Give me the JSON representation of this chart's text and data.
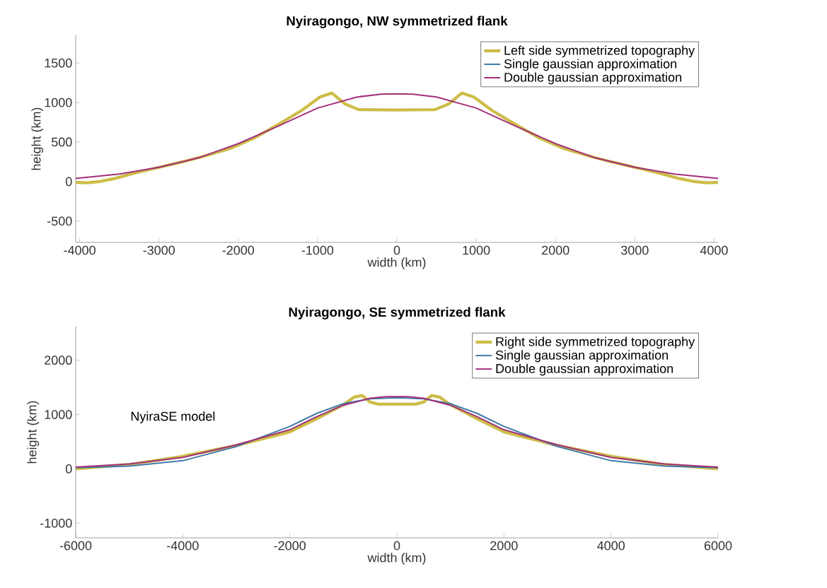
{
  "chart_data": [
    {
      "type": "line",
      "title": "Nyiragongo, NW symmetrized flank",
      "xlabel": "width (km)",
      "ylabel": "height (km)",
      "xlim": [
        -4050,
        4050
      ],
      "ylim": [
        -770,
        1850
      ],
      "xticks": [
        -4000,
        -3000,
        -2000,
        -1000,
        0,
        1000,
        2000,
        3000,
        4000
      ],
      "yticks": [
        -500,
        0,
        500,
        1000,
        1500
      ],
      "legend": "top right",
      "grid": false,
      "series": [
        {
          "name": "Left side symmetrized topography",
          "color": "#cdbd48",
          "x": [
            -4050,
            -3900,
            -3750,
            -3550,
            -3300,
            -3000,
            -2700,
            -2400,
            -2100,
            -1800,
            -1500,
            -1200,
            -970,
            -820,
            -650,
            -480,
            0,
            480,
            650,
            820,
            970,
            1200,
            1500,
            1800,
            2100,
            2400,
            2700,
            3000,
            3300,
            3550,
            3750,
            3900,
            4050
          ],
          "values": [
            -10,
            -15,
            0,
            40,
            110,
            180,
            250,
            330,
            420,
            550,
            720,
            900,
            1070,
            1120,
            980,
            910,
            905,
            910,
            980,
            1120,
            1070,
            900,
            720,
            550,
            420,
            330,
            250,
            180,
            110,
            40,
            0,
            -15,
            -10
          ]
        },
        {
          "name": "Single gaussian approximation",
          "color": "#3f7aa8"
        },
        {
          "name": "Double gaussian approximation",
          "color": "#a3307a",
          "x": [
            -4050,
            -3500,
            -3000,
            -2500,
            -2000,
            -1500,
            -1000,
            -500,
            -200,
            0,
            200,
            500,
            1000,
            1500,
            2000,
            2500,
            3000,
            3500,
            4050
          ],
          "values": [
            40,
            95,
            180,
            300,
            480,
            700,
            930,
            1070,
            1105,
            1110,
            1105,
            1070,
            930,
            700,
            480,
            300,
            180,
            95,
            40
          ]
        }
      ]
    },
    {
      "type": "line",
      "title": "Nyiragongo, SE symmetrized flank",
      "xlabel": "width (km)",
      "ylabel": "height (km)",
      "xlim": [
        -6000,
        6000
      ],
      "ylim": [
        -1270,
        2620
      ],
      "xticks": [
        -6000,
        -4000,
        -2000,
        0,
        2000,
        4000,
        6000
      ],
      "yticks": [
        -1000,
        0,
        1000,
        2000
      ],
      "legend": "top right",
      "grid": false,
      "annotations": [
        "NyiraSE model"
      ],
      "series": [
        {
          "name": "Right side symmetrized topography",
          "color": "#cdbd48",
          "x": [
            -6000,
            -5000,
            -4000,
            -3000,
            -2000,
            -1500,
            -1000,
            -800,
            -650,
            -500,
            -350,
            0,
            350,
            500,
            650,
            800,
            1000,
            1500,
            2000,
            3000,
            4000,
            5000,
            6000
          ],
          "values": [
            0,
            80,
            230,
            430,
            680,
            920,
            1180,
            1320,
            1350,
            1230,
            1190,
            1190,
            1190,
            1230,
            1350,
            1320,
            1180,
            920,
            680,
            430,
            230,
            80,
            0
          ]
        },
        {
          "name": "Single gaussian approximation",
          "color": "#3f7aa8",
          "x": [
            -6000,
            -5000,
            -4000,
            -3000,
            -2000,
            -1500,
            -1000,
            -500,
            0,
            500,
            1000,
            1500,
            2000,
            3000,
            4000,
            5000,
            6000
          ],
          "values": [
            20,
            50,
            150,
            410,
            780,
            1020,
            1200,
            1290,
            1310,
            1290,
            1200,
            1020,
            780,
            410,
            150,
            50,
            20
          ]
        },
        {
          "name": "Double gaussian approximation",
          "color": "#a3307a",
          "x": [
            -6000,
            -5000,
            -4000,
            -3000,
            -2000,
            -1500,
            -1000,
            -500,
            -200,
            0,
            200,
            500,
            1000,
            1500,
            2000,
            3000,
            4000,
            5000,
            6000
          ],
          "values": [
            30,
            90,
            210,
            440,
            720,
            960,
            1170,
            1300,
            1330,
            1330,
            1330,
            1300,
            1170,
            960,
            720,
            440,
            210,
            90,
            30
          ]
        }
      ]
    }
  ]
}
